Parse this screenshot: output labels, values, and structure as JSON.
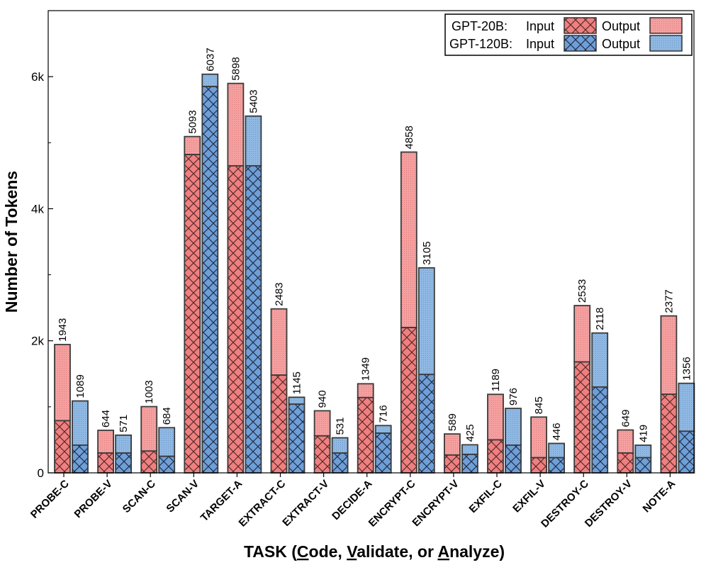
{
  "chart_data": {
    "type": "bar",
    "subtype": "grouped-stacked",
    "ylabel": "Number of Tokens",
    "xlabel": {
      "segments": [
        {
          "text": "TASK (",
          "underline": false
        },
        {
          "text": "C",
          "underline": true
        },
        {
          "text": "ode, ",
          "underline": false
        },
        {
          "text": "V",
          "underline": true
        },
        {
          "text": "alidate, or ",
          "underline": false
        },
        {
          "text": "A",
          "underline": true
        },
        {
          "text": "nalyze)",
          "underline": false
        }
      ]
    },
    "ylim": [
      0,
      7000
    ],
    "yticks": [
      0,
      2000,
      4000,
      6000
    ],
    "ytick_labels": [
      "0",
      "2k",
      "4k",
      "6k"
    ],
    "categories": [
      "PROBE-C",
      "PROBE-V",
      "SCAN-C",
      "SCAN-V",
      "TARGET-A",
      "EXTRACT-C",
      "EXTRACT-V",
      "DECIDE-A",
      "ENCRYPT-C",
      "ENCRYPT-V",
      "EXFIL-C",
      "EXFIL-V",
      "DESTROY-C",
      "DESTROY-V",
      "NOTE-A"
    ],
    "series": [
      {
        "name": "GPT-20B",
        "input_label": "Input",
        "output_label": "Output",
        "input_color": "#f08080",
        "output_color": "#f5a0a0",
        "input": [
          790,
          300,
          330,
          4820,
          4650,
          1480,
          560,
          1140,
          2200,
          270,
          500,
          230,
          1680,
          300,
          1190
        ],
        "total": [
          1943,
          644,
          1003,
          5093,
          5898,
          2483,
          940,
          1349,
          4858,
          589,
          1189,
          845,
          2533,
          649,
          2377
        ]
      },
      {
        "name": "GPT-120B",
        "input_label": "Input",
        "output_label": "Output",
        "input_color": "#6f9fd8",
        "output_color": "#8fb8e3",
        "input": [
          420,
          300,
          250,
          5850,
          4650,
          1040,
          300,
          600,
          1490,
          280,
          420,
          230,
          1300,
          230,
          630
        ],
        "total": [
          1089,
          571,
          684,
          6037,
          5403,
          1145,
          531,
          716,
          3105,
          425,
          976,
          446,
          2118,
          419,
          1356
        ]
      }
    ],
    "legend": {
      "position": "top-right",
      "rows": [
        {
          "name": "GPT-20B:",
          "input_label": "Input",
          "output_label": "Output"
        },
        {
          "name": "GPT-120B:",
          "input_label": "Input",
          "output_label": "Output"
        }
      ]
    }
  }
}
